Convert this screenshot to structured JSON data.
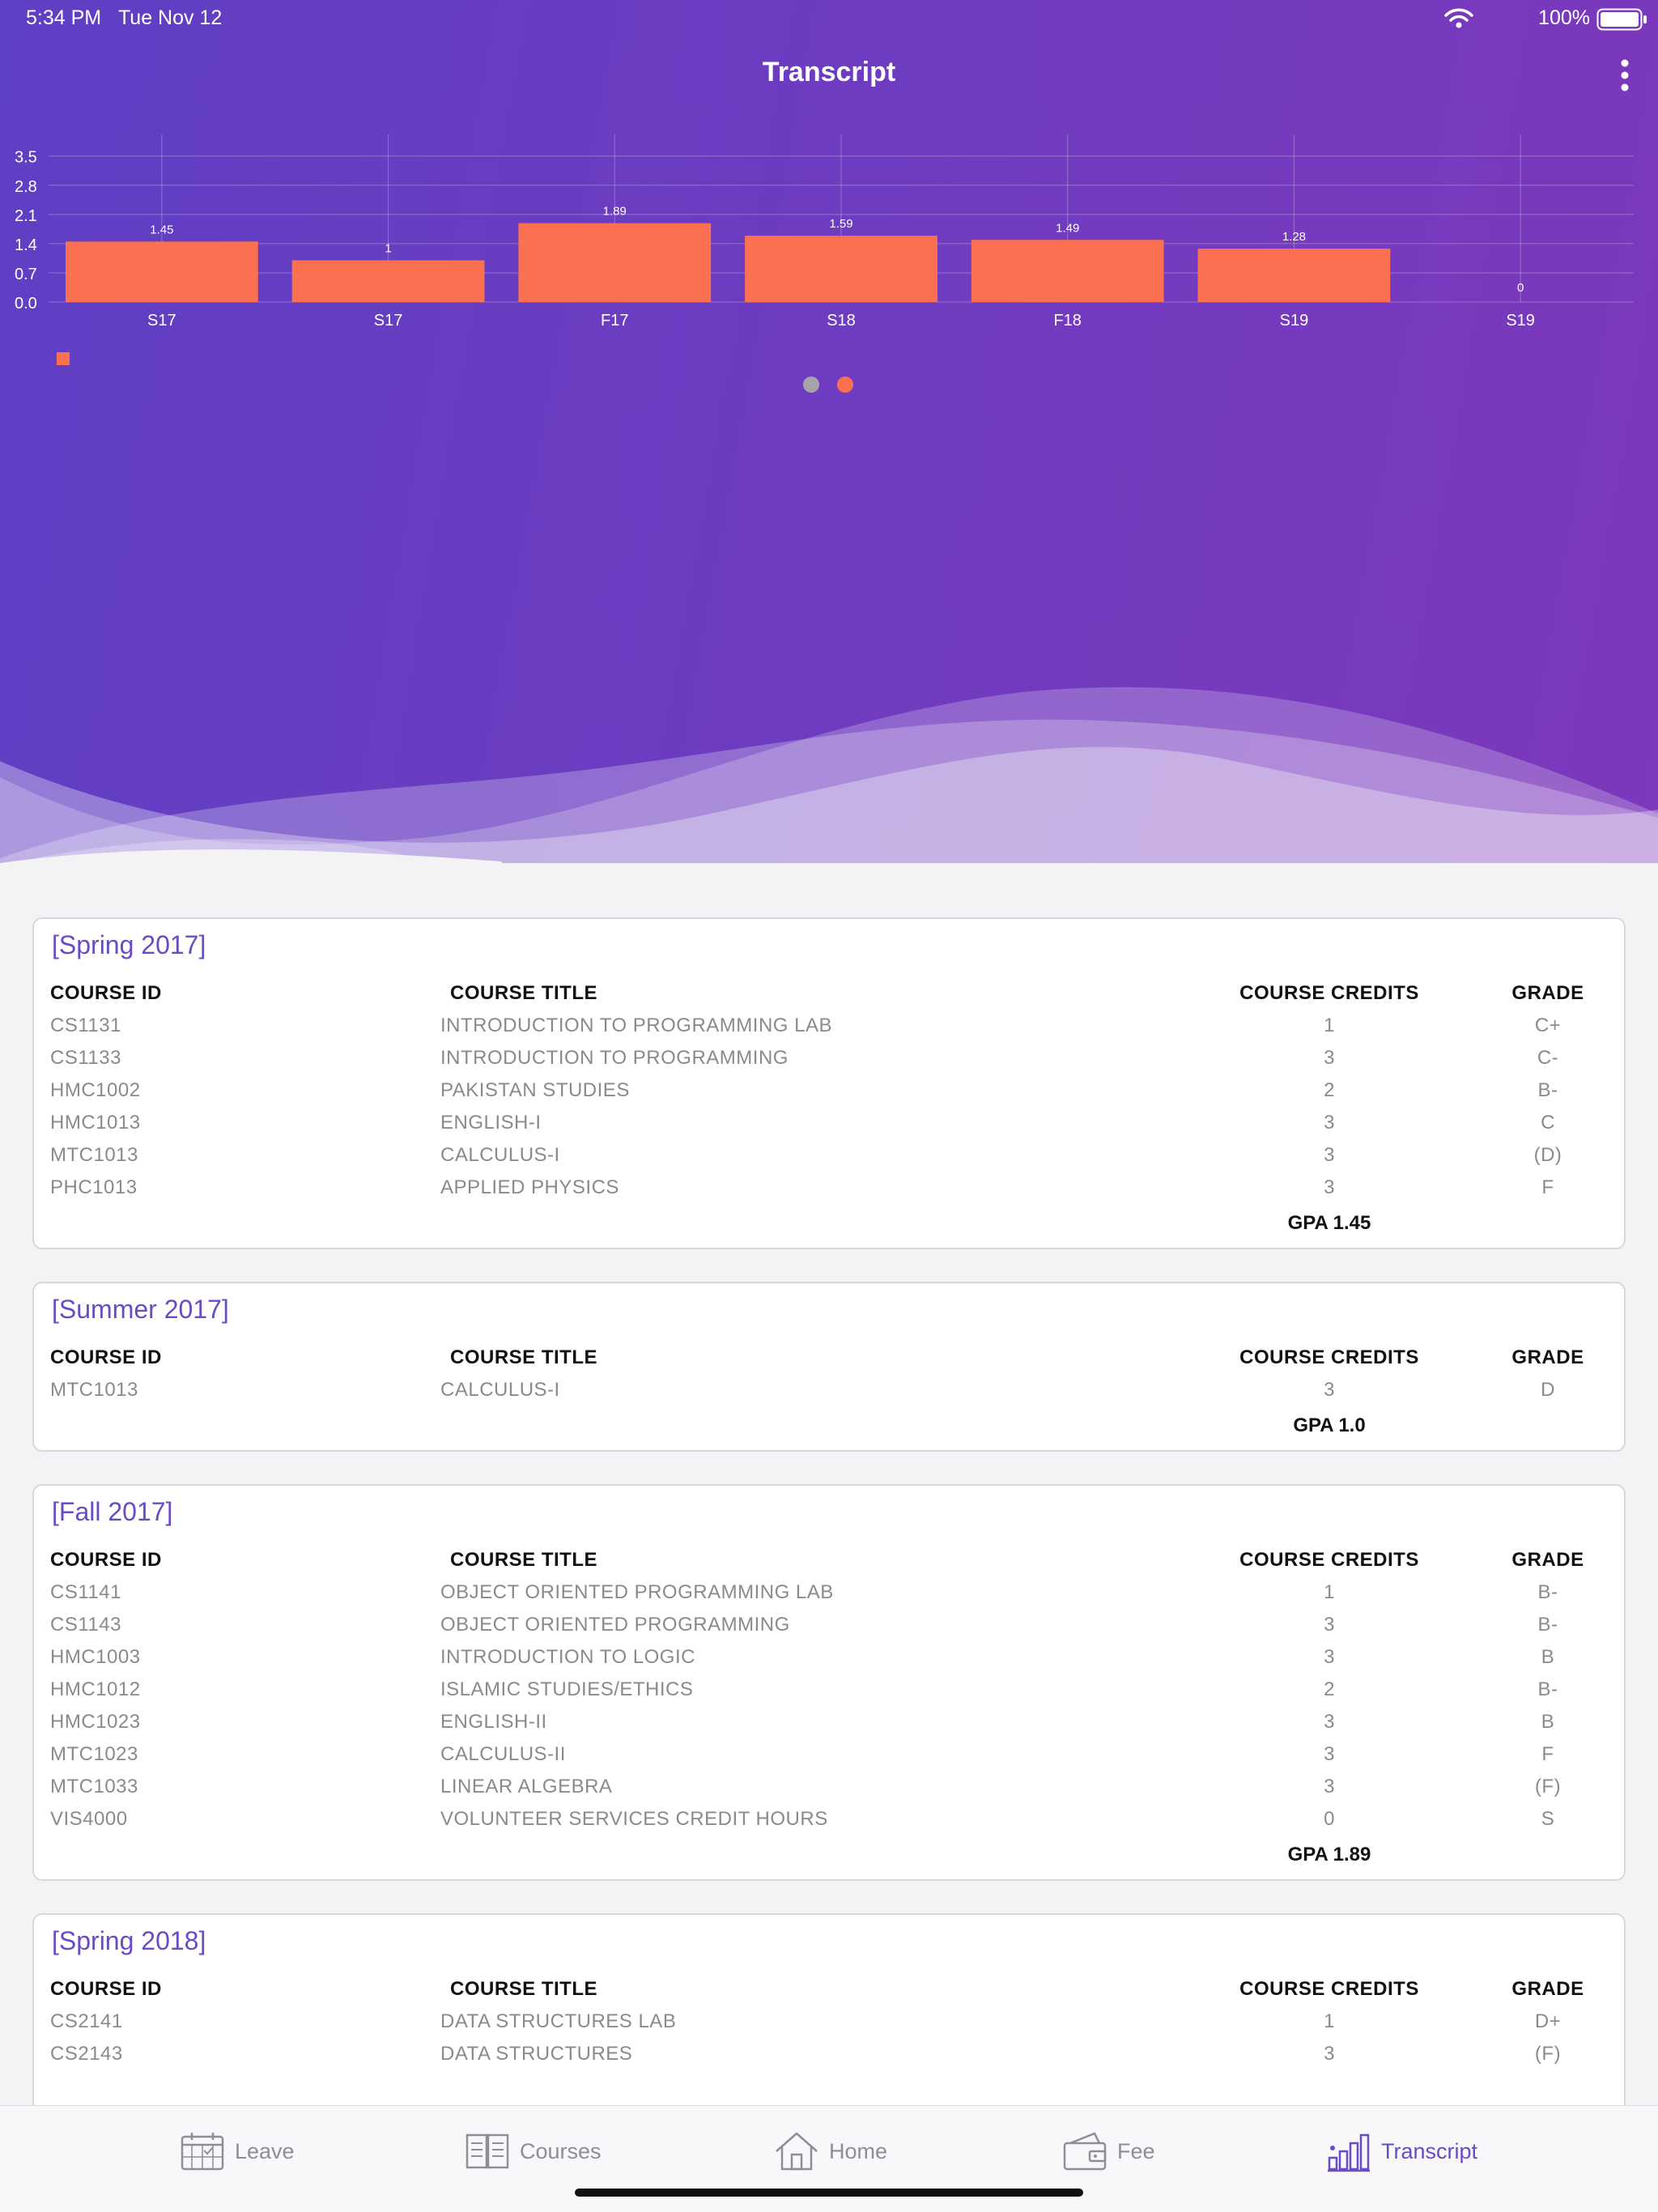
{
  "status_bar": {
    "time": "5:34 PM",
    "date": "Tue Nov 12",
    "battery": "100%",
    "icons": [
      "wifi-icon",
      "battery-icon"
    ]
  },
  "nav": {
    "title": "Transcript",
    "more_icon": "more-vertical-icon"
  },
  "colors": {
    "gradient_start": "#5f3fc4",
    "gradient_end": "#7d38bc",
    "bar": "#fa7051",
    "accent": "#6a4bc4",
    "dot_inactive": "#a7a3a9",
    "dot_active": "#fa7051"
  },
  "chart_data": {
    "type": "bar",
    "categories": [
      "S17",
      "S17",
      "F17",
      "S18",
      "F18",
      "S19",
      "S19"
    ],
    "values": [
      1.45,
      1,
      1.89,
      1.59,
      1.49,
      1.28,
      0
    ],
    "value_labels": [
      "1.45",
      "1",
      "1.89",
      "1.59",
      "1.49",
      "1.28",
      "0"
    ],
    "y_ticks": [
      "0.0",
      "0.7",
      "1.4",
      "2.1",
      "2.8",
      "3.5"
    ],
    "ylim": [
      0,
      3.5
    ],
    "grid": true,
    "legend": "bottom-left"
  },
  "pager": {
    "count": 2,
    "active_index": 1
  },
  "semesters": [
    {
      "title": "[Spring 2017]",
      "headers": {
        "id": "COURSE ID",
        "title": "COURSE TITLE",
        "credits": "COURSE CREDITS",
        "grade": "GRADE"
      },
      "courses": [
        {
          "id": "CS1131",
          "title": "INTRODUCTION TO PROGRAMMING LAB",
          "credits": "1",
          "grade": "C+"
        },
        {
          "id": "CS1133",
          "title": "INTRODUCTION TO PROGRAMMING",
          "credits": "3",
          "grade": "C-"
        },
        {
          "id": "HMC1002",
          "title": "PAKISTAN STUDIES",
          "credits": "2",
          "grade": "B-"
        },
        {
          "id": "HMC1013",
          "title": "ENGLISH-I",
          "credits": "3",
          "grade": "C"
        },
        {
          "id": "MTC1013",
          "title": "CALCULUS-I",
          "credits": "3",
          "grade": "(D)"
        },
        {
          "id": "PHC1013",
          "title": "APPLIED PHYSICS",
          "credits": "3",
          "grade": "F"
        }
      ],
      "gpa": "GPA 1.45"
    },
    {
      "title": "[Summer 2017]",
      "headers": {
        "id": "COURSE ID",
        "title": "COURSE TITLE",
        "credits": "COURSE CREDITS",
        "grade": "GRADE"
      },
      "courses": [
        {
          "id": "MTC1013",
          "title": "CALCULUS-I",
          "credits": "3",
          "grade": "D"
        }
      ],
      "gpa": "GPA 1.0"
    },
    {
      "title": "[Fall 2017]",
      "headers": {
        "id": "COURSE ID",
        "title": "COURSE TITLE",
        "credits": "COURSE CREDITS",
        "grade": "GRADE"
      },
      "courses": [
        {
          "id": "CS1141",
          "title": "OBJECT ORIENTED PROGRAMMING LAB",
          "credits": "1",
          "grade": "B-"
        },
        {
          "id": "CS1143",
          "title": "OBJECT ORIENTED PROGRAMMING",
          "credits": "3",
          "grade": "B-"
        },
        {
          "id": "HMC1003",
          "title": "INTRODUCTION TO LOGIC",
          "credits": "3",
          "grade": "B"
        },
        {
          "id": "HMC1012",
          "title": "ISLAMIC STUDIES/ETHICS",
          "credits": "2",
          "grade": "B-"
        },
        {
          "id": "HMC1023",
          "title": "ENGLISH-II",
          "credits": "3",
          "grade": "B"
        },
        {
          "id": "MTC1023",
          "title": "CALCULUS-II",
          "credits": "3",
          "grade": "F"
        },
        {
          "id": "MTC1033",
          "title": "LINEAR ALGEBRA",
          "credits": "3",
          "grade": "(F)"
        },
        {
          "id": "VIS4000",
          "title": "VOLUNTEER SERVICES CREDIT HOURS",
          "credits": "0",
          "grade": "S"
        }
      ],
      "gpa": "GPA 1.89"
    },
    {
      "title": "[Spring 2018]",
      "headers": {
        "id": "COURSE ID",
        "title": "COURSE TITLE",
        "credits": "COURSE CREDITS",
        "grade": "GRADE"
      },
      "courses": [
        {
          "id": "CS2141",
          "title": "DATA STRUCTURES LAB",
          "credits": "1",
          "grade": "D+"
        },
        {
          "id": "CS2143",
          "title": "DATA STRUCTURES",
          "credits": "3",
          "grade": "(F)"
        }
      ],
      "gpa": ""
    }
  ],
  "tabbar": {
    "items": [
      {
        "label": "Leave",
        "icon": "calendar-icon",
        "active": false
      },
      {
        "label": "Courses",
        "icon": "book-icon",
        "active": false
      },
      {
        "label": "Home",
        "icon": "home-icon",
        "active": false
      },
      {
        "label": "Fee",
        "icon": "wallet-icon",
        "active": false
      },
      {
        "label": "Transcript",
        "icon": "bar-chart-icon",
        "active": true
      }
    ]
  }
}
